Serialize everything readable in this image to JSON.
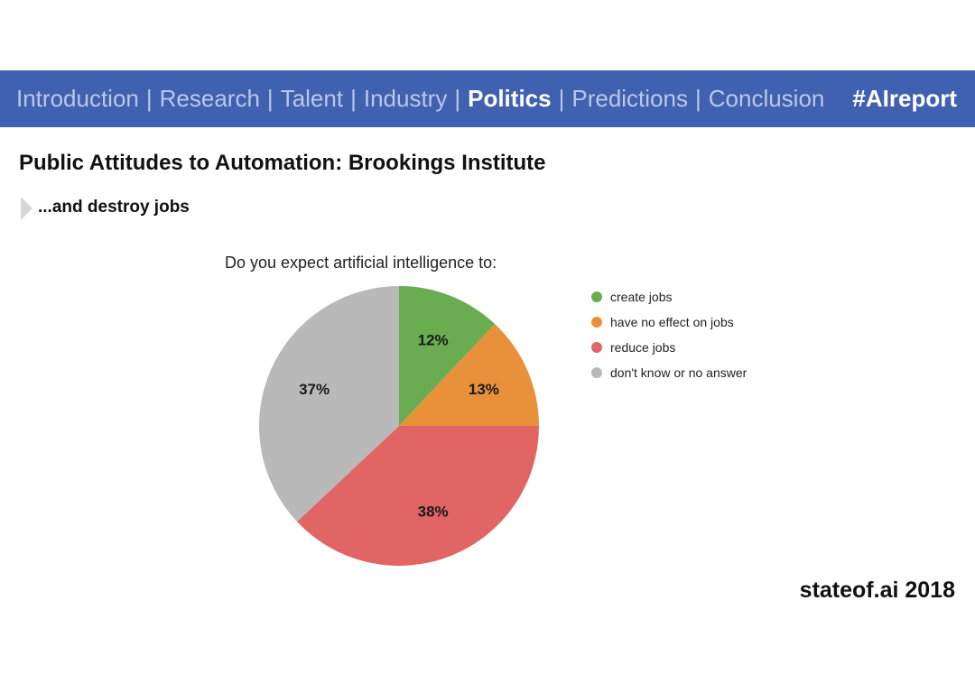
{
  "nav": {
    "items": [
      {
        "label": "Introduction",
        "active": false
      },
      {
        "label": "Research",
        "active": false
      },
      {
        "label": "Talent",
        "active": false
      },
      {
        "label": "Industry",
        "active": false
      },
      {
        "label": "Politics",
        "active": true
      },
      {
        "label": "Predictions",
        "active": false
      },
      {
        "label": "Conclusion",
        "active": false
      }
    ],
    "separator": "|",
    "hashtag": "#AIreport"
  },
  "header": {
    "title": "Public Attitudes to Automation: Brookings Institute",
    "subtitle": "...and destroy jobs"
  },
  "footer": {
    "brand": "stateof.ai 2018"
  },
  "colors": {
    "nav_background": "#4060b0",
    "nav_inactive_text": "#b9c8ec",
    "nav_active_text": "#ffffff"
  },
  "chart_data": {
    "type": "pie",
    "title": "Do you expect artificial intelligence to:",
    "legend_position": "right",
    "slices": [
      {
        "label": "create jobs",
        "value": 12,
        "value_label": "12%",
        "color": "#6aac50"
      },
      {
        "label": "have no effect on jobs",
        "value": 13,
        "value_label": "13%",
        "color": "#e8913a"
      },
      {
        "label": "reduce jobs",
        "value": 38,
        "value_label": "38%",
        "color": "#e26565"
      },
      {
        "label": "don't know or no answer",
        "value": 37,
        "value_label": "37%",
        "color": "#b8b9b8"
      }
    ]
  }
}
